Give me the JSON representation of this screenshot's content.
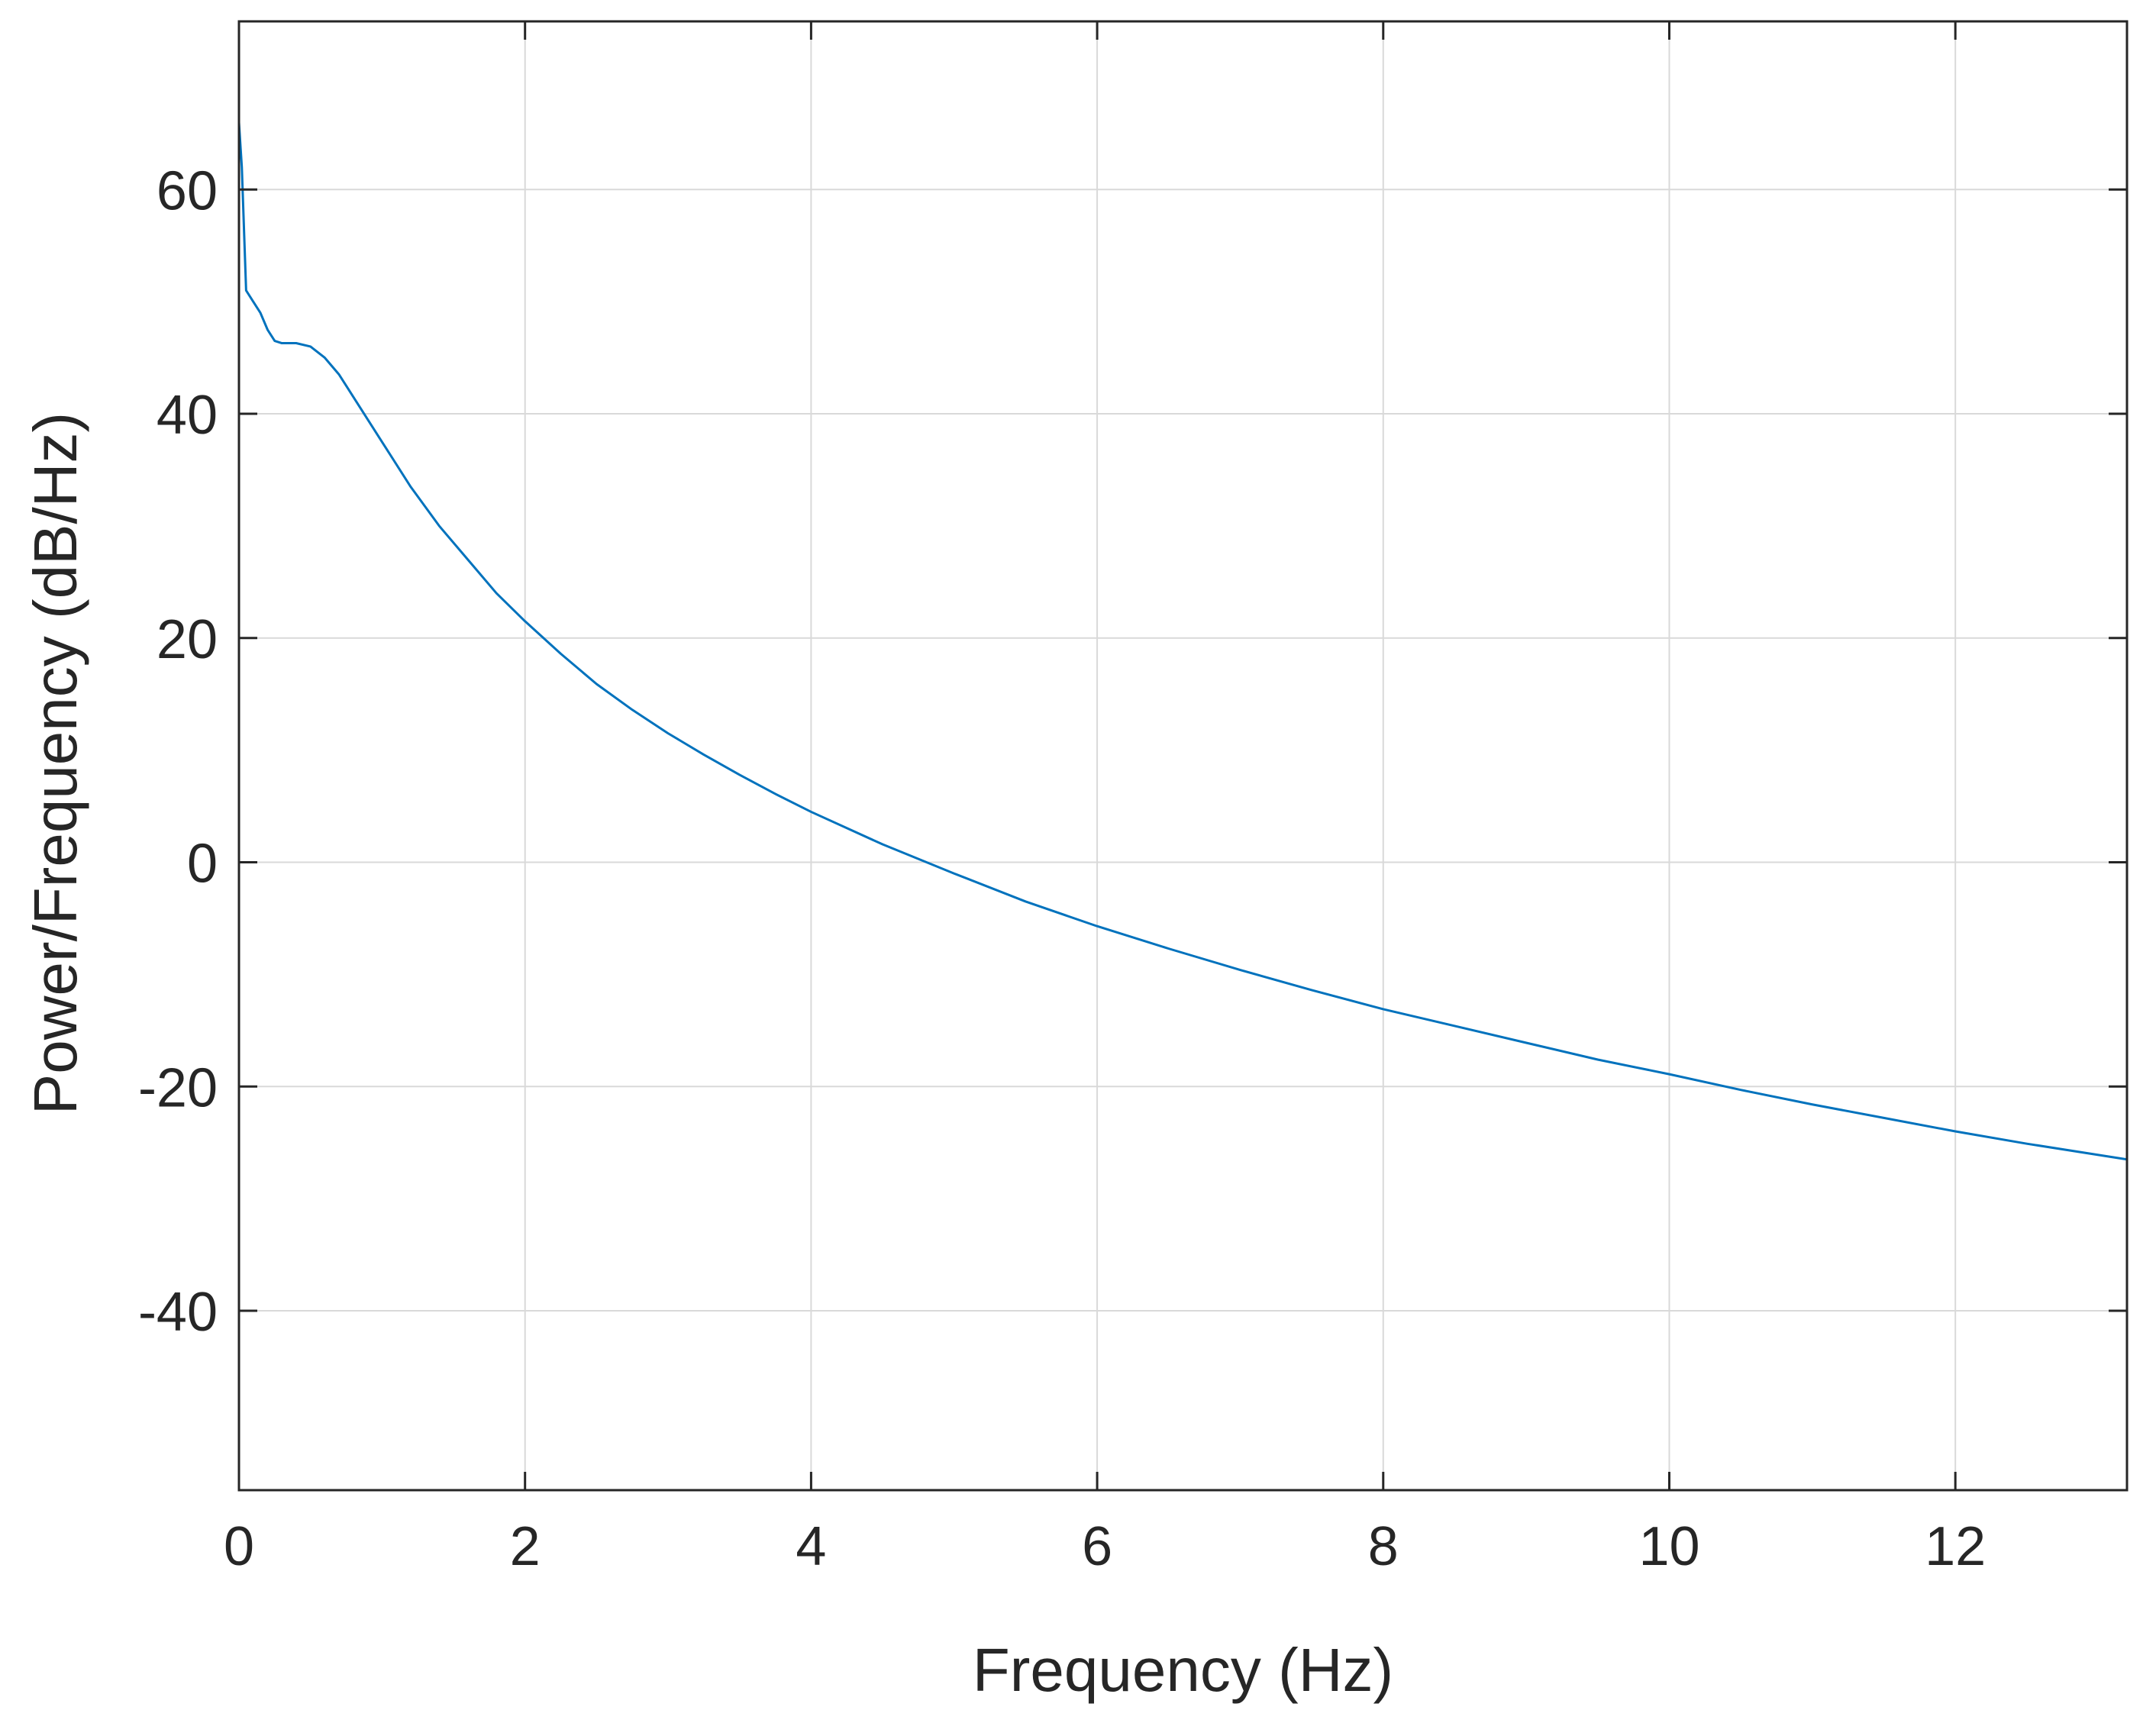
{
  "chart_data": {
    "type": "line",
    "title": "",
    "xlabel": "Frequency (Hz)",
    "ylabel": "Power/Frequency (dB/Hz)",
    "xlim": [
      0,
      13.2
    ],
    "ylim": [
      -56,
      75
    ],
    "xticks": [
      0,
      2,
      4,
      6,
      8,
      10,
      12
    ],
    "yticks": [
      -40,
      -20,
      0,
      20,
      40,
      60
    ],
    "grid": true,
    "legend": "none",
    "colors": {
      "line": "#0072BD",
      "axis": "#262626",
      "grid": "#d9d9d9",
      "background": "#ffffff"
    },
    "series": [
      {
        "x": [
          0,
          0.02,
          0.05,
          0.1,
          0.15,
          0.2,
          0.25,
          0.3,
          0.4,
          0.5,
          0.6,
          0.7,
          0.8,
          0.9,
          1.0,
          1.2,
          1.4,
          1.6,
          1.8,
          2.0,
          2.25,
          2.5,
          2.75,
          3.0,
          3.25,
          3.5,
          3.75,
          4.0,
          4.5,
          5.0,
          5.5,
          6.0,
          6.5,
          7.0,
          7.5,
          8.0,
          8.5,
          9.0,
          9.5,
          10.0,
          10.5,
          11.0,
          11.5,
          12.0,
          12.5,
          13.0,
          13.2
        ],
        "y": [
          66,
          62,
          51,
          50,
          49,
          47.5,
          46.5,
          46.3,
          46.3,
          46,
          45,
          43.5,
          41.5,
          39.5,
          37.5,
          33.5,
          30,
          27,
          24,
          21.5,
          18.6,
          15.9,
          13.6,
          11.5,
          9.6,
          7.8,
          6.1,
          4.5,
          1.6,
          -1.0,
          -3.5,
          -5.7,
          -7.7,
          -9.6,
          -11.4,
          -13.1,
          -14.6,
          -16.1,
          -17.6,
          -18.9,
          -20.3,
          -21.6,
          -22.8,
          -24.0,
          -25.1,
          -26.1,
          -26.5
        ]
      }
    ]
  }
}
